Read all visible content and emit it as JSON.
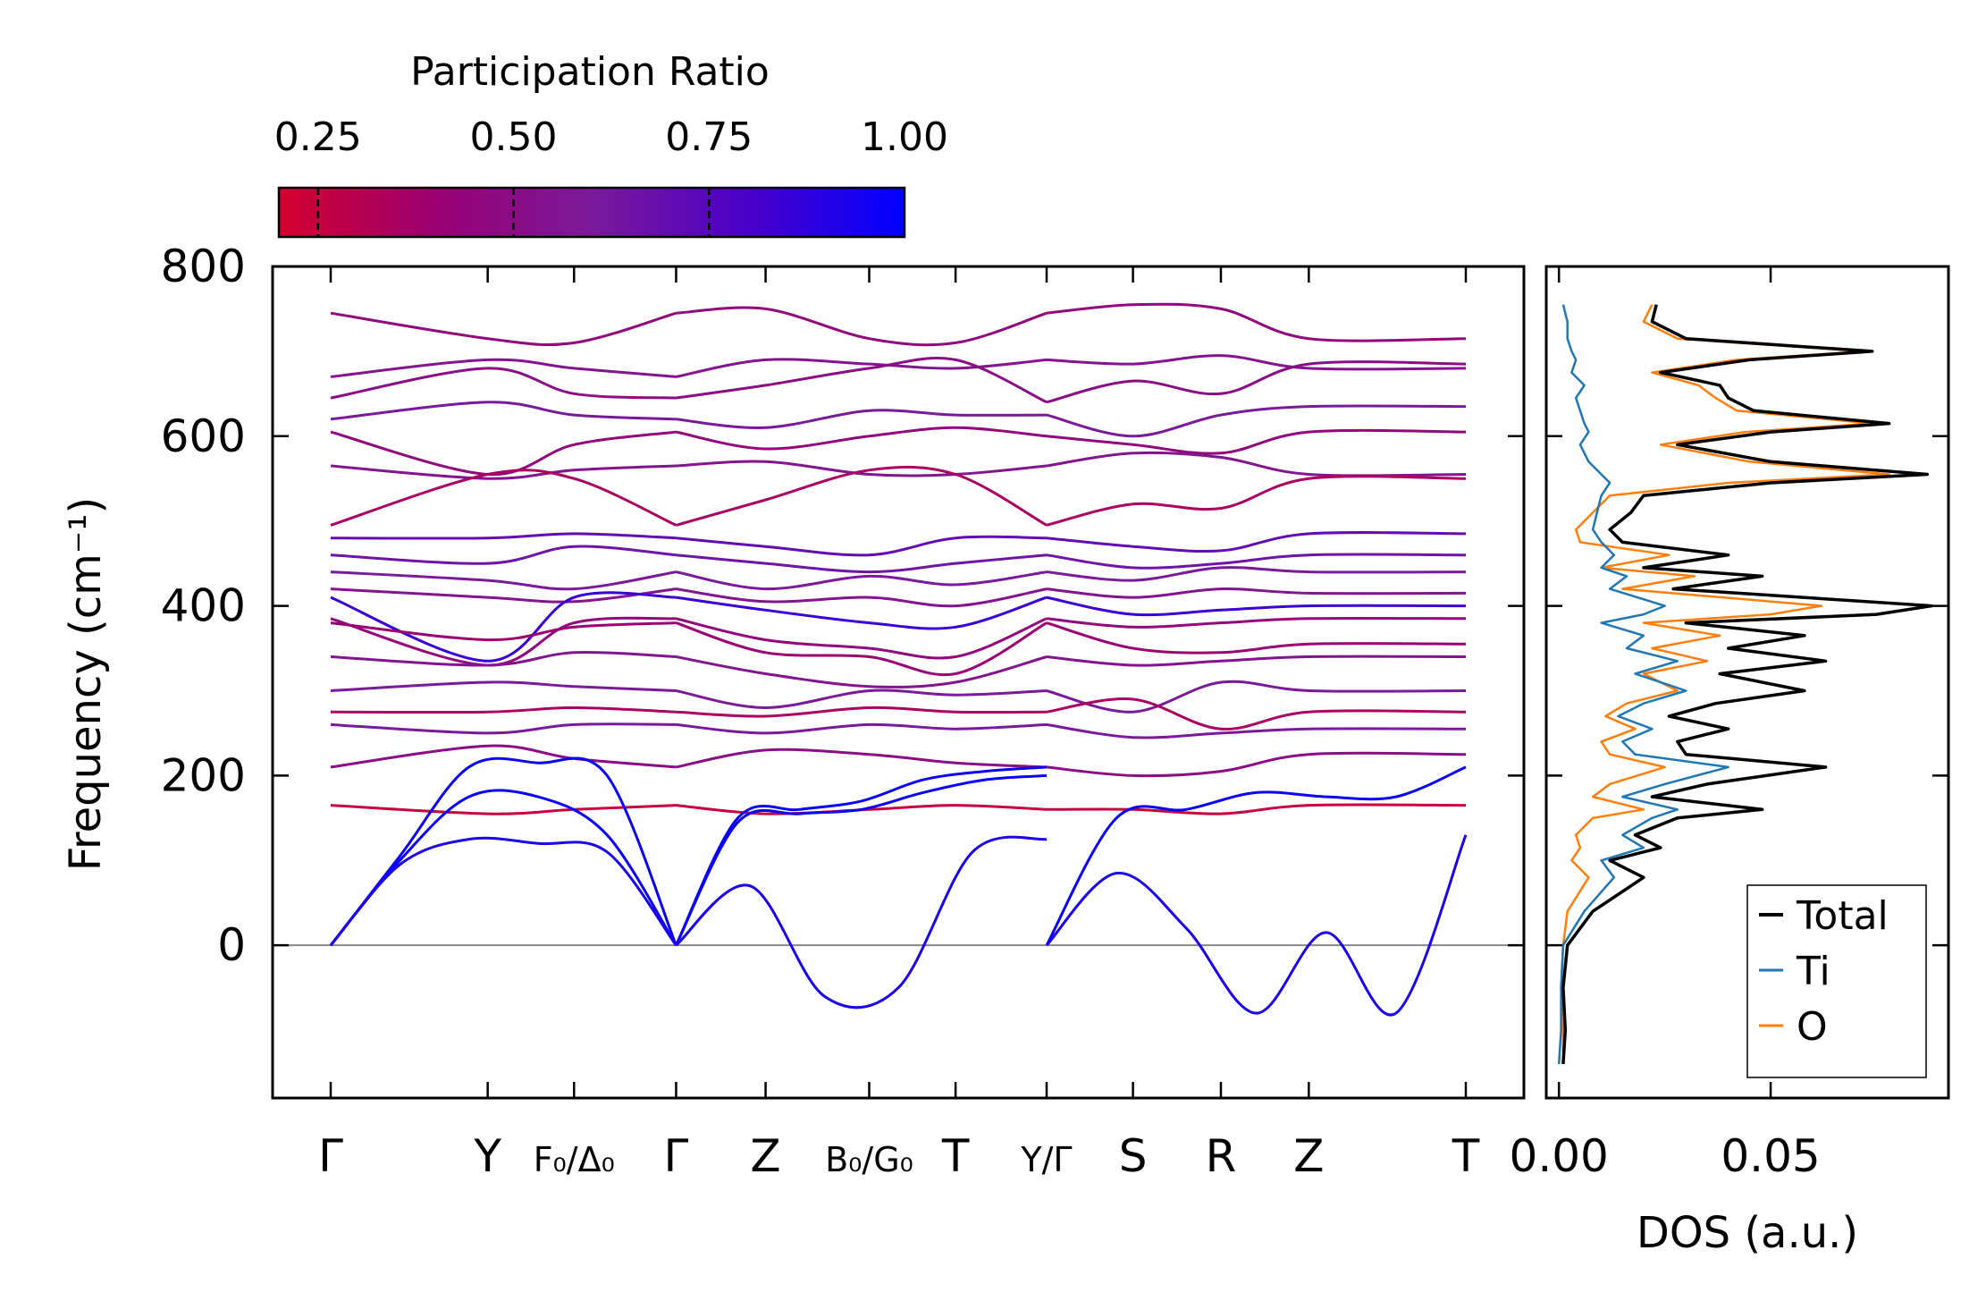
{
  "chart_data": [
    {
      "type": "line",
      "panel": "phonon-dispersion",
      "ylabel": "Frequency (cm⁻¹)",
      "ylim": [
        -180,
        800
      ],
      "yticks": [
        0,
        200,
        400,
        600,
        800
      ],
      "xticks": [
        "Γ",
        "Y",
        "F₀/Δ₀",
        "Γ",
        "Z",
        "B₀/G₀",
        "T",
        "Y/Γ",
        "S",
        "R",
        "Z",
        "T"
      ],
      "segments": [
        {
          "from": "Γ",
          "to": "Y",
          "x": [
            0,
            1.0
          ]
        },
        {
          "from": "Y",
          "to": "F₀/Δ₀",
          "x": [
            1.0,
            1.55
          ]
        },
        {
          "from": "F₀/Δ₀",
          "to": "Γ",
          "x": [
            1.55,
            2.2
          ]
        },
        {
          "from": "Γ",
          "to": "Z",
          "x": [
            2.2,
            2.77
          ]
        },
        {
          "from": "Z",
          "to": "B₀/G₀",
          "x": [
            2.77,
            3.43
          ]
        },
        {
          "from": "B₀/G₀",
          "to": "T",
          "x": [
            3.43,
            3.98
          ]
        },
        {
          "from": "T",
          "to": "Y/Γ",
          "x": [
            3.98,
            4.56
          ]
        },
        {
          "from": "Y/Γ",
          "to": "S",
          "x": [
            4.56,
            5.11
          ]
        },
        {
          "from": "S",
          "to": "R",
          "x": [
            5.11,
            5.67
          ]
        },
        {
          "from": "R",
          "to": "Z",
          "x": [
            5.67,
            6.23
          ]
        },
        {
          "from": "Z",
          "to": "T",
          "x": [
            6.23,
            7.23
          ]
        }
      ],
      "tick_positions": [
        0,
        1.0,
        1.55,
        2.2,
        2.77,
        3.43,
        3.98,
        4.56,
        5.11,
        5.67,
        6.23,
        7.23
      ],
      "path_breaks": [
        2.2,
        4.56
      ],
      "colorbar": {
        "title": "Participation Ratio",
        "range": [
          0.2,
          1.0
        ],
        "ticks": [
          "0.25",
          "0.50",
          "0.75",
          "1.00"
        ],
        "tick_values": [
          0.25,
          0.5,
          0.75,
          1.0
        ],
        "colors": [
          "#d4002e",
          "#9a0072",
          "#7a1a9a",
          "#4a00c8",
          "#0000ff"
        ]
      },
      "acoustic_branches": [
        {
          "pr": 0.97,
          "block1": [
            0,
            100,
            175,
            175,
            130,
            0
          ],
          "block2": [
            0,
            150,
            160,
            170,
            195,
            205,
            210
          ],
          "block3": [
            0,
            150,
            160,
            180,
            175,
            175,
            210
          ]
        },
        {
          "pr": 0.97,
          "block1": [
            0,
            105,
            210,
            215,
            200,
            0
          ],
          "block2": [
            0,
            145,
            155,
            160,
            180,
            195,
            200
          ]
        },
        {
          "pr": 0.93,
          "block1": [
            0,
            95,
            125,
            120,
            110,
            0
          ],
          "block2": [
            0,
            70,
            -60,
            -50,
            110,
            125
          ],
          "block3": [
            0,
            85,
            20,
            -80,
            15,
            -80,
            130
          ]
        }
      ],
      "optical_branches": [
        {
          "pr": 0.45,
          "values": [
            745,
            715,
            710,
            745,
            750,
            715,
            710,
            745,
            755,
            750,
            715
          ]
        },
        {
          "pr": 0.55,
          "values": [
            670,
            690,
            680,
            670,
            690,
            685,
            680,
            690,
            685,
            695,
            680
          ]
        },
        {
          "pr": 0.5,
          "values": [
            645,
            680,
            650,
            645,
            660,
            680,
            690,
            640,
            665,
            650,
            685
          ]
        },
        {
          "pr": 0.6,
          "values": [
            620,
            640,
            625,
            620,
            610,
            630,
            625,
            625,
            600,
            625,
            635
          ]
        },
        {
          "pr": 0.45,
          "values": [
            605,
            555,
            590,
            605,
            585,
            600,
            610,
            600,
            590,
            580,
            605
          ]
        },
        {
          "pr": 0.55,
          "values": [
            565,
            550,
            560,
            565,
            570,
            555,
            555,
            565,
            580,
            575,
            555
          ]
        },
        {
          "pr": 0.35,
          "values": [
            495,
            555,
            550,
            495,
            525,
            560,
            555,
            495,
            520,
            515,
            550
          ]
        },
        {
          "pr": 0.7,
          "values": [
            480,
            480,
            485,
            480,
            470,
            460,
            480,
            480,
            470,
            465,
            485
          ]
        },
        {
          "pr": 0.65,
          "values": [
            460,
            450,
            470,
            460,
            450,
            440,
            450,
            460,
            445,
            450,
            460
          ]
        },
        {
          "pr": 0.6,
          "values": [
            440,
            430,
            420,
            440,
            420,
            435,
            425,
            440,
            430,
            445,
            440
          ]
        },
        {
          "pr": 0.55,
          "values": [
            420,
            410,
            405,
            420,
            405,
            410,
            400,
            420,
            410,
            420,
            415
          ]
        },
        {
          "pr": 0.85,
          "values": [
            410,
            335,
            410,
            410,
            395,
            380,
            375,
            410,
            390,
            395,
            400
          ]
        },
        {
          "pr": 0.45,
          "values": [
            385,
            330,
            380,
            385,
            360,
            350,
            340,
            385,
            375,
            380,
            385
          ]
        },
        {
          "pr": 0.4,
          "values": [
            380,
            360,
            375,
            380,
            345,
            340,
            320,
            380,
            350,
            345,
            355
          ]
        },
        {
          "pr": 0.55,
          "values": [
            340,
            330,
            345,
            340,
            320,
            305,
            310,
            340,
            330,
            335,
            340
          ]
        },
        {
          "pr": 0.6,
          "values": [
            300,
            310,
            305,
            300,
            280,
            300,
            295,
            300,
            275,
            310,
            300
          ]
        },
        {
          "pr": 0.35,
          "values": [
            275,
            275,
            280,
            275,
            270,
            280,
            275,
            275,
            290,
            255,
            275
          ]
        },
        {
          "pr": 0.6,
          "values": [
            260,
            250,
            260,
            260,
            250,
            260,
            255,
            260,
            245,
            250,
            255
          ]
        },
        {
          "pr": 0.5,
          "values": [
            210,
            235,
            220,
            210,
            230,
            225,
            215,
            210,
            200,
            205,
            225
          ]
        },
        {
          "pr": 0.25,
          "values": [
            165,
            155,
            160,
            165,
            155,
            160,
            165,
            160,
            160,
            155,
            165
          ]
        }
      ]
    },
    {
      "type": "line",
      "panel": "density-of-states",
      "xlabel": "DOS (a.u.)",
      "xlim": [
        -0.003,
        0.092
      ],
      "xticks": [
        "0.00",
        "0.05"
      ],
      "xtick_values": [
        0.0,
        0.05
      ],
      "ylim": [
        -180,
        800
      ],
      "legend": {
        "position": "lower-right",
        "entries": [
          "Total",
          "Ti",
          "O"
        ]
      },
      "series": [
        {
          "name": "Total",
          "color": "#000000",
          "freq": [
            -140,
            -100,
            -50,
            0,
            40,
            80,
            100,
            115,
            130,
            150,
            160,
            175,
            190,
            210,
            225,
            240,
            255,
            270,
            285,
            300,
            320,
            335,
            350,
            365,
            380,
            390,
            400,
            420,
            435,
            445,
            460,
            475,
            490,
            510,
            530,
            545,
            555,
            570,
            590,
            605,
            615,
            630,
            645,
            660,
            675,
            690,
            700,
            715,
            735,
            755
          ],
          "values": [
            0.001,
            0.0015,
            0.001,
            0.002,
            0.008,
            0.02,
            0.012,
            0.024,
            0.018,
            0.028,
            0.048,
            0.022,
            0.035,
            0.063,
            0.03,
            0.028,
            0.04,
            0.026,
            0.037,
            0.058,
            0.038,
            0.063,
            0.04,
            0.058,
            0.03,
            0.075,
            0.088,
            0.027,
            0.048,
            0.02,
            0.04,
            0.015,
            0.012,
            0.017,
            0.02,
            0.05,
            0.087,
            0.05,
            0.028,
            0.05,
            0.078,
            0.046,
            0.04,
            0.038,
            0.024,
            0.045,
            0.074,
            0.03,
            0.022,
            0.023
          ]
        },
        {
          "name": "Ti",
          "color": "#1f77b4",
          "freq": [
            -140,
            -100,
            -50,
            0,
            40,
            80,
            100,
            115,
            130,
            150,
            160,
            175,
            190,
            210,
            225,
            240,
            255,
            270,
            285,
            300,
            320,
            335,
            350,
            365,
            380,
            390,
            400,
            420,
            435,
            445,
            460,
            475,
            490,
            510,
            530,
            545,
            555,
            570,
            590,
            605,
            615,
            630,
            645,
            660,
            675,
            690,
            700,
            715,
            735,
            755
          ],
          "values": [
            0.0,
            0.0005,
            0.0005,
            0.001,
            0.006,
            0.013,
            0.01,
            0.02,
            0.015,
            0.022,
            0.028,
            0.015,
            0.025,
            0.04,
            0.018,
            0.015,
            0.022,
            0.014,
            0.02,
            0.03,
            0.018,
            0.028,
            0.016,
            0.02,
            0.01,
            0.02,
            0.025,
            0.012,
            0.016,
            0.01,
            0.013,
            0.01,
            0.008,
            0.009,
            0.01,
            0.012,
            0.01,
            0.007,
            0.005,
            0.007,
            0.006,
            0.005,
            0.004,
            0.006,
            0.003,
            0.004,
            0.003,
            0.002,
            0.002,
            0.001
          ]
        },
        {
          "name": "O",
          "color": "#ff7f0e",
          "freq": [
            -140,
            -100,
            -50,
            0,
            40,
            80,
            100,
            115,
            130,
            150,
            160,
            175,
            190,
            210,
            225,
            240,
            255,
            270,
            285,
            300,
            320,
            335,
            350,
            365,
            380,
            390,
            400,
            420,
            435,
            445,
            460,
            475,
            490,
            510,
            530,
            545,
            555,
            570,
            590,
            605,
            615,
            630,
            645,
            660,
            675,
            690,
            700,
            715,
            735,
            755
          ],
          "values": [
            0.001,
            0.001,
            0.0005,
            0.001,
            0.002,
            0.007,
            0.003,
            0.005,
            0.004,
            0.008,
            0.02,
            0.008,
            0.012,
            0.025,
            0.012,
            0.01,
            0.018,
            0.011,
            0.016,
            0.028,
            0.02,
            0.035,
            0.022,
            0.038,
            0.02,
            0.05,
            0.062,
            0.015,
            0.032,
            0.01,
            0.026,
            0.005,
            0.004,
            0.008,
            0.012,
            0.04,
            0.078,
            0.045,
            0.024,
            0.044,
            0.074,
            0.042,
            0.037,
            0.033,
            0.022,
            0.042,
            0.072,
            0.028,
            0.02,
            0.022
          ]
        }
      ]
    }
  ]
}
